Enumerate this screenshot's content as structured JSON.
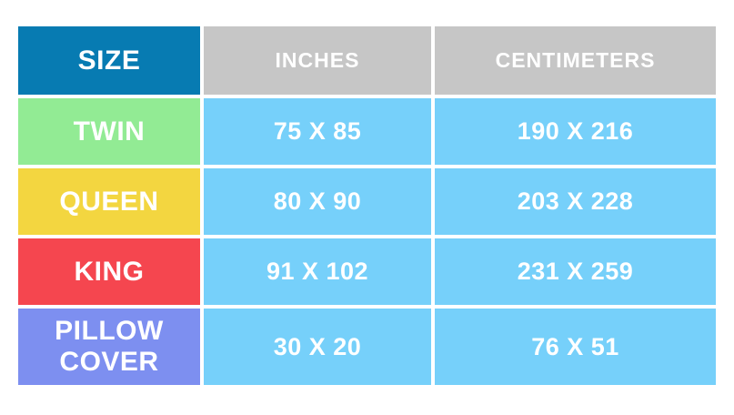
{
  "table": {
    "header": {
      "size": "SIZE",
      "inches": "INCHES",
      "centimeters": "CENTIMETERS"
    },
    "rows": [
      {
        "size": "TWIN",
        "inches": "75 X 85",
        "centimeters": "190 X 216",
        "color": "#92eb94"
      },
      {
        "size": "QUEEN",
        "inches": "80 X 90",
        "centimeters": "203 X 228",
        "color": "#f3d640"
      },
      {
        "size": "KING",
        "inches": "91 X 102",
        "centimeters": "231 X 259",
        "color": "#f5464f"
      },
      {
        "size": "PILLOW COVER",
        "inches": "30 X 20",
        "centimeters": "76 X 51",
        "color": "#7d8ff0"
      }
    ]
  },
  "colors": {
    "header_size_bg": "#077bb2",
    "header_bg": "#c6c6c6",
    "data_bg": "#76d0fa",
    "page_bg": "#ffffff",
    "text": "#ffffff"
  },
  "chart_data": {
    "type": "table",
    "title": "",
    "columns": [
      "SIZE",
      "INCHES",
      "CENTIMETERS"
    ],
    "rows": [
      [
        "TWIN",
        "75 X 85",
        "190 X 216"
      ],
      [
        "QUEEN",
        "80 X 90",
        "203 X 228"
      ],
      [
        "KING",
        "91 X 102",
        "231 X 259"
      ],
      [
        "PILLOW COVER",
        "30 X 20",
        "76 X 51"
      ]
    ]
  }
}
